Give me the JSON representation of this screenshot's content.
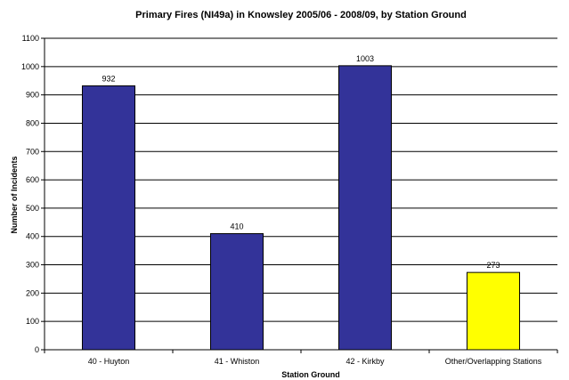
{
  "chart_data": {
    "type": "bar",
    "title": "Primary Fires (NI49a)  in Knowsley 2005/06 - 2008/09, by Station Ground",
    "xlabel": "Station Ground",
    "ylabel": "Number of Incidents",
    "categories": [
      "40 - Huyton",
      "41 - Whiston",
      "42 - Kirkby",
      "Other/Overlapping Stations"
    ],
    "values": [
      932,
      410,
      1003,
      273
    ],
    "colors": [
      "#333399",
      "#333399",
      "#333399",
      "#FFFF00"
    ],
    "ylim": [
      0,
      1100
    ],
    "yticks": [
      0,
      100,
      200,
      300,
      400,
      500,
      600,
      700,
      800,
      900,
      1000,
      1100
    ],
    "grid": true,
    "legend": "none"
  }
}
